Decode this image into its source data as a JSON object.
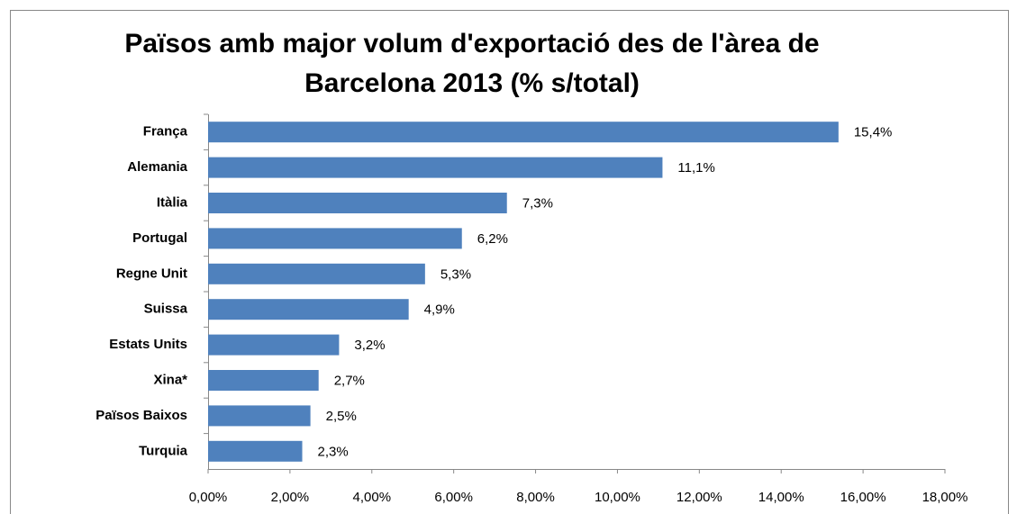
{
  "chart_data": {
    "type": "bar",
    "orientation": "horizontal",
    "title": [
      "Països amb major volum d'exportació  des de l'àrea de",
      "Barcelona  2013 (% s/total)"
    ],
    "categories": [
      "França",
      "Alemania",
      "Itàlia",
      "Portugal",
      "Regne Unit",
      "Suissa",
      "Estats Units",
      "Xina*",
      "Països Baixos",
      "Turquia"
    ],
    "values": [
      15.4,
      11.1,
      7.3,
      6.2,
      5.3,
      4.9,
      3.2,
      2.7,
      2.5,
      2.3
    ],
    "value_labels": [
      "15,4%",
      "11,1%",
      "7,3%",
      "6,2%",
      "5,3%",
      "4,9%",
      "3,2%",
      "2,7%",
      "2,5%",
      "2,3%"
    ],
    "color": "#4f81bd",
    "xlim": [
      0,
      18
    ],
    "xticks": [
      {
        "value": 0,
        "label": "0,00%"
      },
      {
        "value": 2,
        "label": "2,00%"
      },
      {
        "value": 4,
        "label": "4,00%"
      },
      {
        "value": 6,
        "label": "6,00%"
      },
      {
        "value": 8,
        "label": "8,00%"
      },
      {
        "value": 10,
        "label": "10,00%"
      },
      {
        "value": 12,
        "label": "12,00%"
      },
      {
        "value": 14,
        "label": "14,00%"
      },
      {
        "value": 16,
        "label": "16,00%"
      },
      {
        "value": 18,
        "label": "18,00%"
      }
    ],
    "grid": false
  }
}
